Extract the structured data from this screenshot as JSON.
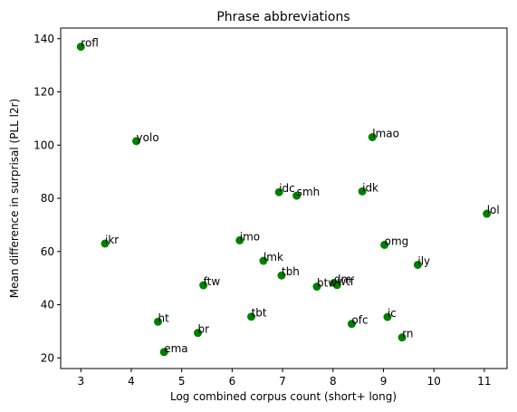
{
  "chart_data": {
    "type": "scatter",
    "title": "Phrase abbreviations",
    "xlabel": "Log combined corpus count (short+ long)",
    "ylabel": "Mean difference in surprisal (PLL l2r)",
    "xlim": [
      2.6,
      11.45
    ],
    "ylim": [
      16,
      144
    ],
    "xticks": [
      3,
      4,
      5,
      6,
      7,
      8,
      9,
      10,
      11
    ],
    "yticks": [
      20,
      40,
      60,
      80,
      100,
      120,
      140
    ],
    "grid": false,
    "marker_color": "#008000",
    "points": [
      {
        "label": "rofl",
        "x": 3.0,
        "y": 137
      },
      {
        "label": "yolo",
        "x": 4.1,
        "y": 101.5
      },
      {
        "label": "ikr",
        "x": 3.48,
        "y": 63
      },
      {
        "label": "lmao",
        "x": 8.78,
        "y": 103
      },
      {
        "label": "idc",
        "x": 6.93,
        "y": 82.3
      },
      {
        "label": "smh",
        "x": 7.28,
        "y": 81
      },
      {
        "label": "idk",
        "x": 8.58,
        "y": 82.6
      },
      {
        "label": "lol",
        "x": 11.05,
        "y": 74.2
      },
      {
        "label": "imo",
        "x": 6.15,
        "y": 64.2
      },
      {
        "label": "omg",
        "x": 9.02,
        "y": 62.5
      },
      {
        "label": "ily",
        "x": 9.68,
        "y": 55
      },
      {
        "label": "lmk",
        "x": 6.62,
        "y": 56.5
      },
      {
        "label": "tbh",
        "x": 6.98,
        "y": 51
      },
      {
        "label": "ftw",
        "x": 5.43,
        "y": 47.3
      },
      {
        "label": "btw",
        "x": 7.68,
        "y": 46.8
      },
      {
        "label": "dm",
        "x": 8.02,
        "y": 48.2
      },
      {
        "label": "wtf",
        "x": 8.08,
        "y": 47.4
      },
      {
        "label": "tbt",
        "x": 6.38,
        "y": 35.5
      },
      {
        "label": "ic",
        "x": 9.08,
        "y": 35.4
      },
      {
        "label": "ht",
        "x": 4.53,
        "y": 33.6
      },
      {
        "label": "ofc",
        "x": 8.37,
        "y": 32.8
      },
      {
        "label": "br",
        "x": 5.32,
        "y": 29.4
      },
      {
        "label": "rn",
        "x": 9.37,
        "y": 27.7
      },
      {
        "label": "ema",
        "x": 4.65,
        "y": 22.2
      }
    ]
  }
}
